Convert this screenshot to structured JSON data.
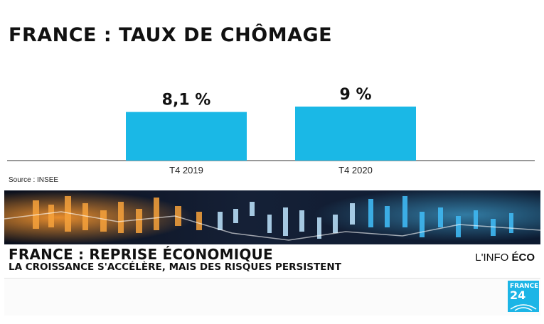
{
  "chart_data": {
    "type": "bar",
    "title": "FRANCE : TAUX DE CHÔMAGE",
    "categories": [
      "T4 2019",
      "T4 2020"
    ],
    "values": [
      8.1,
      9
    ],
    "value_labels": [
      "8,1 %",
      "9 %"
    ],
    "unit": "%",
    "colors": {
      "bar": "#1ab8e6",
      "axis": "#333333"
    },
    "grid": false,
    "legend": "none"
  },
  "source": "Source : INSEE",
  "banner": {
    "headline": "FRANCE : REPRISE ÉCONOMIQUE",
    "subheadline": "LA CROISSANCE S'ACCÉLÈRE, MAIS DES RISQUES PERSISTENT",
    "program_prefix": "L'INFO",
    "program_bold": "ÉCO"
  },
  "logo": {
    "line1": "FRANCE",
    "line2": "24",
    "icon": "france24-logo"
  }
}
